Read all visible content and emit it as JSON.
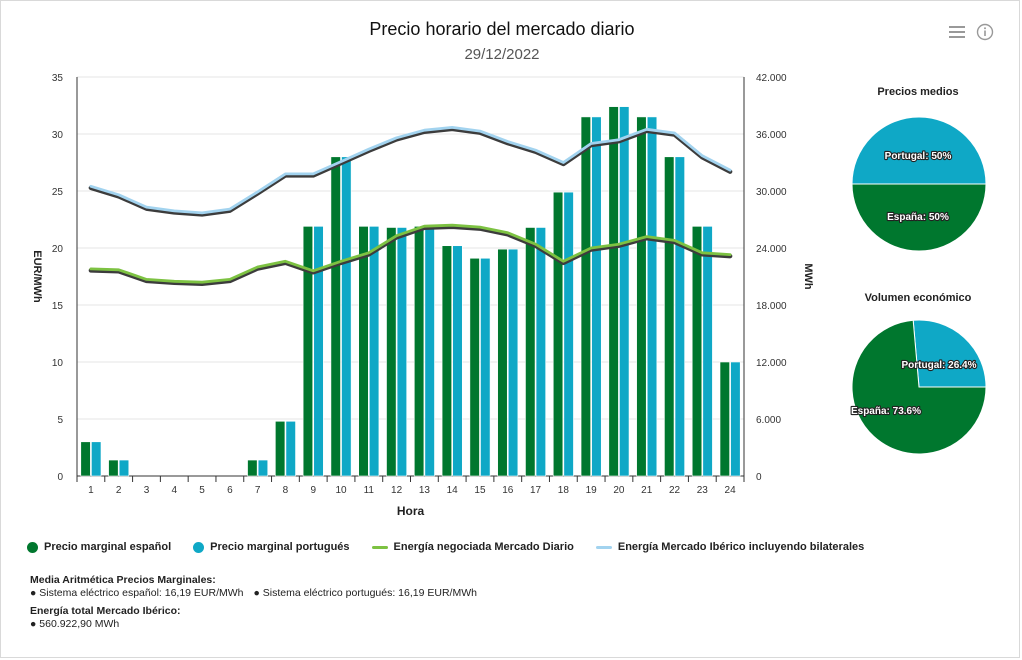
{
  "header": {
    "title": "Precio horario del mercado diario",
    "date": "29/12/2022"
  },
  "toolbar": {
    "menu_icon": "hamburger-menu-icon",
    "info_icon": "info-circle-icon"
  },
  "colors": {
    "spain": "#00772e",
    "portugal": "#0fa8c6",
    "energy_md": "#7dc242",
    "energy_md_outline": "#3c3c3c",
    "energy_iberian": "#a2d3ef",
    "energy_iberian_outline": "#3c3c3c"
  },
  "chart_data": [
    {
      "type": "bar+line",
      "xlabel": "Hora",
      "ylabel_left": "EUR/MWh",
      "ylabel_right": "MWh",
      "categories": [
        "1",
        "2",
        "3",
        "4",
        "5",
        "6",
        "7",
        "8",
        "9",
        "10",
        "11",
        "12",
        "13",
        "14",
        "15",
        "16",
        "17",
        "18",
        "19",
        "20",
        "21",
        "22",
        "23",
        "24"
      ],
      "ylim_left": [
        0,
        35
      ],
      "yticks_left": [
        "0",
        "5",
        "10",
        "15",
        "20",
        "25",
        "30",
        "35"
      ],
      "ylim_right": [
        0,
        42000
      ],
      "yticks_right": [
        "0",
        "6.000",
        "12.000",
        "18.000",
        "24.000",
        "30.000",
        "36.000",
        "42.000"
      ],
      "grid": true,
      "series": [
        {
          "name": "Precio marginal español",
          "kind": "bar",
          "axis": "left",
          "values": [
            3.0,
            1.4,
            0,
            0,
            0,
            0,
            1.4,
            4.8,
            21.9,
            28.0,
            21.9,
            21.8,
            21.9,
            20.2,
            19.1,
            19.9,
            21.8,
            24.9,
            31.5,
            32.4,
            31.5,
            28.0,
            21.9,
            10.0
          ]
        },
        {
          "name": "Precio marginal portugués",
          "kind": "bar",
          "axis": "left",
          "values": [
            3.0,
            1.4,
            0,
            0,
            0,
            0,
            1.4,
            4.8,
            21.9,
            28.0,
            21.9,
            21.8,
            21.9,
            20.2,
            19.1,
            19.9,
            21.8,
            24.9,
            31.5,
            32.4,
            31.5,
            28.0,
            21.9,
            10.0
          ]
        },
        {
          "name": "Energía negociada Mercado Diario",
          "kind": "line",
          "axis": "right",
          "values": [
            21800,
            21700,
            20700,
            20500,
            20400,
            20700,
            22000,
            22600,
            21600,
            22600,
            23500,
            25300,
            26300,
            26400,
            26200,
            25600,
            24400,
            22600,
            24000,
            24400,
            25200,
            24800,
            23500,
            23300
          ]
        },
        {
          "name": "Energía Mercado Ibérico incluyendo bilaterales",
          "kind": "line",
          "axis": "right",
          "values": [
            30500,
            29600,
            28300,
            27900,
            27700,
            28100,
            29900,
            31800,
            31800,
            33100,
            34400,
            35600,
            36400,
            36700,
            36300,
            35200,
            34300,
            33000,
            35000,
            35400,
            36500,
            36100,
            33700,
            32200
          ]
        }
      ]
    },
    {
      "type": "pie",
      "title": "Precios medios",
      "slices": [
        {
          "label": "Portugal",
          "value": 50,
          "text": "Portugal: 50%"
        },
        {
          "label": "España",
          "value": 50,
          "text": "España: 50%"
        }
      ]
    },
    {
      "type": "pie",
      "title": "Volumen económico",
      "slices": [
        {
          "label": "Portugal",
          "value": 26.4,
          "text": "Portugal: 26.4%"
        },
        {
          "label": "España",
          "value": 73.6,
          "text": "España: 73.6%"
        }
      ]
    }
  ],
  "summary": {
    "avg_heading": "Media Aritmética Precios Marginales:",
    "avg_spain": "● Sistema eléctrico español: 16,19 EUR/MWh",
    "avg_portugal": "● Sistema eléctrico portugués: 16,19 EUR/MWh",
    "energy_heading": "Energía total Mercado Ibérico:",
    "energy_total": "● 560.922,90 MWh"
  }
}
